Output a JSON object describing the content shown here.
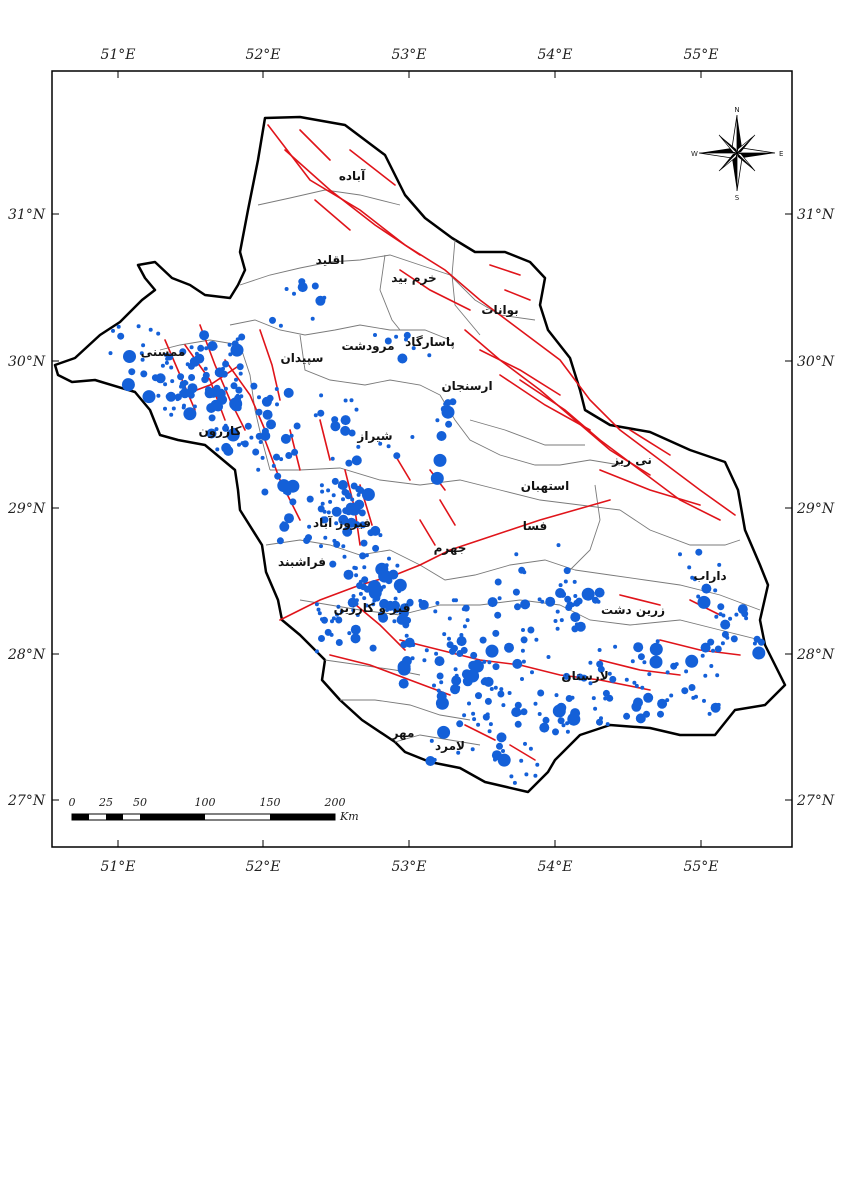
{
  "map": {
    "lon_ticks": [
      "51°E",
      "52°E",
      "53°E",
      "54°E",
      "55°E"
    ],
    "lat_ticks": [
      "31°N",
      "30°N",
      "29°N",
      "28°N",
      "27°N"
    ],
    "cities": [
      "آباده",
      "اقلید",
      "خرم بید",
      "بوانات",
      "پاسارگاد",
      "مرودشت",
      "سپیدان",
      "ممسنی",
      "ارسنجان",
      "کازرون",
      "شیراز",
      "نی ریز",
      "استهبان",
      "فیروز آباد",
      "فسا",
      "فراشبند",
      "جهرم",
      "داراب",
      "قیر و کارزین",
      "زرین دشت",
      "لارستان",
      "مهر",
      "لامرد"
    ],
    "scale_bar": {
      "labels": [
        "0",
        "25",
        "50",
        "100",
        "150",
        "200"
      ],
      "unit": "Km"
    },
    "compass": {
      "n": "N",
      "s": "S",
      "e": "E",
      "w": "W"
    },
    "colors": {
      "fault": "#e0141a",
      "epicenter": "#1460d8",
      "boundary": "#000000",
      "county": "#7a7a7a"
    }
  }
}
